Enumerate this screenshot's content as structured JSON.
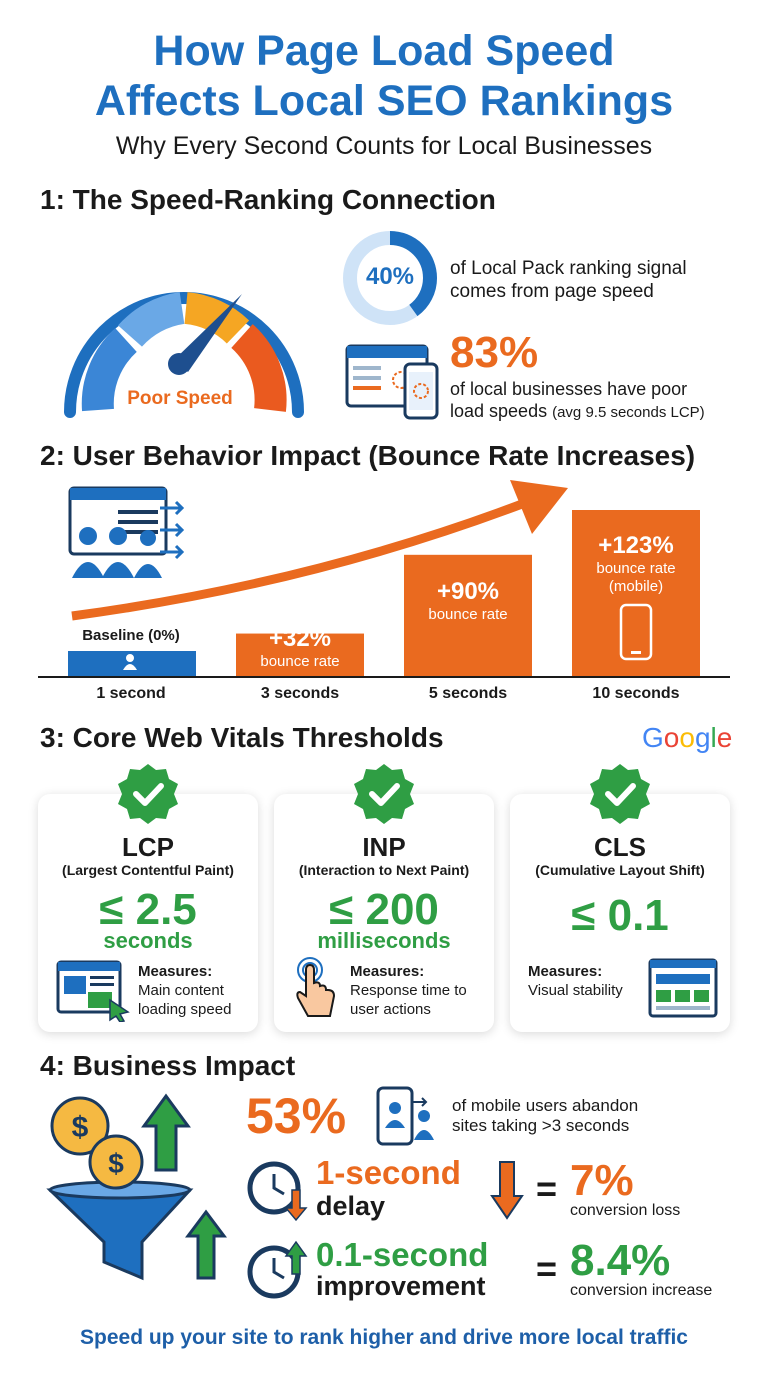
{
  "title_line1": "How Page Load Speed",
  "title_line2": "Affects Local SEO Rankings",
  "subtitle": "Why Every Second Counts for Local Businesses",
  "section1": {
    "heading": "1: The Speed-Ranking Connection",
    "gauge_label": "Poor Speed",
    "ring_value": "40%",
    "ring_fraction": 0.4,
    "ring_text_line1": "of Local Pack ranking signal",
    "ring_text_line2": "comes from page speed",
    "stat_value": "83%",
    "stat_text_line1": "of local businesses have poor",
    "stat_text_line2": "load speeds",
    "stat_text_note": "(avg 9.5 seconds LCP)",
    "icons": [
      "speedometer-icon",
      "browser-loading-icon",
      "phone-loading-icon"
    ]
  },
  "section2": {
    "heading": "2: User Behavior Impact (Bounce Rate Increases)",
    "icons": [
      "users-leaving-icon",
      "trend-arrow-icon",
      "user-icon",
      "mobile-phone-icon"
    ]
  },
  "chart_data": {
    "type": "bar",
    "title": "2: User Behavior Impact (Bounce Rate Increases)",
    "categories": [
      "1 second",
      "3 seconds",
      "5 seconds",
      "10 seconds"
    ],
    "values": [
      0,
      32,
      90,
      123
    ],
    "labels": [
      {
        "value": "Baseline (0%)",
        "sub": ""
      },
      {
        "value": "+32%",
        "sub": "bounce rate"
      },
      {
        "value": "+90%",
        "sub": "bounce rate"
      },
      {
        "value": "+123%",
        "sub": "bounce rate\n(mobile)"
      }
    ],
    "colors": [
      "#1e6fbf",
      "#ea6a1f",
      "#ea6a1f",
      "#ea6a1f"
    ],
    "xlabel": "",
    "ylabel": "",
    "grid": false
  },
  "section3": {
    "heading": "3: Core Web Vitals Thresholds",
    "brand": "Google",
    "cards": [
      {
        "acronym": "LCP",
        "full": "(Largest Contentful Paint)",
        "value": "≤ 2.5",
        "unit": "seconds",
        "measures_label": "Measures:",
        "measures_line1": "Main content",
        "measures_line2": "loading speed",
        "icon": "webpage-click-icon"
      },
      {
        "acronym": "INP",
        "full": "(Interaction to Next Paint)",
        "value": "≤ 200",
        "unit": "milliseconds",
        "measures_label": "Measures:",
        "measures_line1": "Response time to",
        "measures_line2": "user actions",
        "icon": "tap-hand-icon"
      },
      {
        "acronym": "CLS",
        "full": "(Cumulative Layout Shift)",
        "value": "≤ 0.1",
        "unit": "",
        "measures_label": "Measures:",
        "measures_line1": "Visual stability",
        "measures_line2": "",
        "icon": "layout-grid-icon"
      }
    ]
  },
  "section4": {
    "heading": "4: Business Impact",
    "abandon_value": "53%",
    "abandon_line1": "of mobile users abandon",
    "abandon_line2": "sites taking >3 seconds",
    "delay_main": "1-second",
    "delay_sub": "delay",
    "delay_eq": "=",
    "delay_value": "7%",
    "delay_caption": "conversion loss",
    "improve_main": "0.1-second",
    "improve_sub": "improvement",
    "improve_eq": "=",
    "improve_value": "8.4%",
    "improve_caption": "conversion increase",
    "icons": [
      "money-funnel-icon",
      "dollar-coin-icon",
      "growth-arrow-icon",
      "mobile-users-icon",
      "clock-down-icon",
      "clock-up-icon",
      "down-arrow-icon"
    ]
  },
  "footer": "Speed up your site to rank higher and drive more local traffic",
  "colors": {
    "blue": "#1e6fbf",
    "orange": "#ea6a1f",
    "green": "#2f9e44",
    "light_blue": "#cfe3f7"
  }
}
